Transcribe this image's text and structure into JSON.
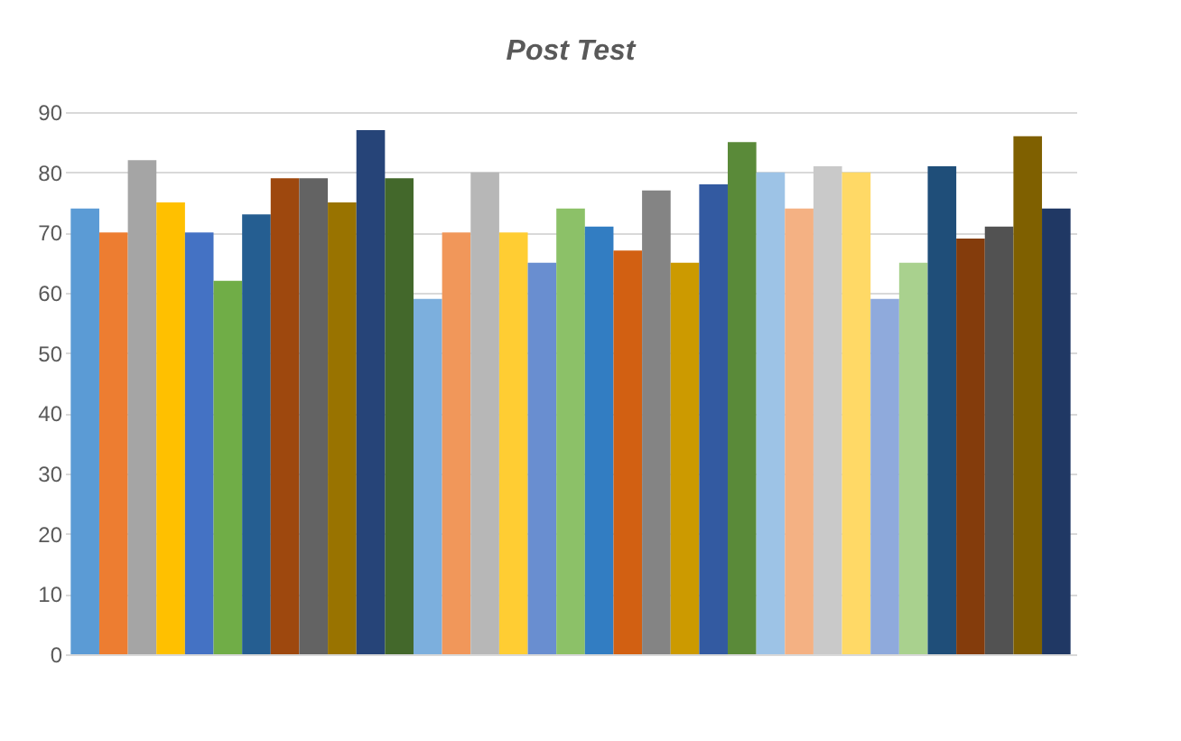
{
  "chart_data": {
    "type": "bar",
    "title": "Post Test",
    "categories": [
      null,
      null,
      null,
      null,
      null,
      null,
      null,
      null,
      null,
      null,
      null,
      null,
      null,
      null,
      null,
      null,
      null,
      null,
      null,
      null,
      null,
      null,
      null,
      null,
      null,
      null,
      null,
      null,
      null,
      null,
      null,
      null,
      null,
      null,
      null
    ],
    "values": [
      74,
      70,
      82,
      75,
      70,
      62,
      73,
      79,
      79,
      75,
      87,
      79,
      59,
      70,
      80,
      70,
      65,
      74,
      71,
      67,
      77,
      65,
      78,
      85,
      80,
      74,
      81,
      80,
      59,
      65,
      81,
      69,
      71,
      86,
      74
    ],
    "colors": [
      "#5b9bd5",
      "#ed7d31",
      "#a5a5a5",
      "#ffc000",
      "#4472c4",
      "#70ad47",
      "#255e91",
      "#9e480e",
      "#636363",
      "#997300",
      "#264478",
      "#43682b",
      "#7cafdd",
      "#f1975a",
      "#b7b7b7",
      "#ffcd33",
      "#698ed0",
      "#8cc168",
      "#327dc2",
      "#d26012",
      "#848484",
      "#cc9a00",
      "#335aa1",
      "#5a8a39",
      "#9dc3e6",
      "#f4b183",
      "#c9c9c9",
      "#ffd966",
      "#8faadc",
      "#a9d18e",
      "#1f4e79",
      "#843c0c",
      "#525252",
      "#7f6000",
      "#203864"
    ],
    "ylim": [
      0,
      90
    ],
    "yticks": [
      0,
      10,
      20,
      30,
      40,
      50,
      60,
      70,
      80,
      90
    ],
    "grid": "y",
    "tick_labels": "y"
  }
}
